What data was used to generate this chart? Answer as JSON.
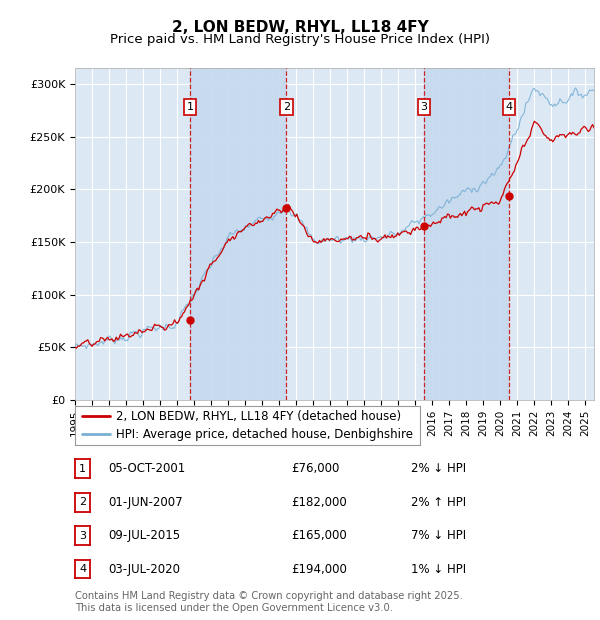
{
  "title": "2, LON BEDW, RHYL, LL18 4FY",
  "subtitle": "Price paid vs. HM Land Registry's House Price Index (HPI)",
  "ylabel_ticks": [
    "£0",
    "£50K",
    "£100K",
    "£150K",
    "£200K",
    "£250K",
    "£300K"
  ],
  "ytick_values": [
    0,
    50000,
    100000,
    150000,
    200000,
    250000,
    300000
  ],
  "ylim": [
    0,
    315000
  ],
  "xlim_start": 1995.0,
  "xlim_end": 2025.5,
  "sale_dates": [
    2001.75,
    2007.42,
    2015.52,
    2020.5
  ],
  "sale_prices": [
    76000,
    182000,
    165000,
    194000
  ],
  "sale_labels": [
    "1",
    "2",
    "3",
    "4"
  ],
  "background_color": "#ffffff",
  "chart_bg_color": "#dce9f5",
  "shade_color": "#c5d9ee",
  "grid_color": "#ffffff",
  "hpi_line_color": "#7ab0d4",
  "price_line_color": "#cc0000",
  "vline_color": "#cc0000",
  "legend_entries": [
    "2, LON BEDW, RHYL, LL18 4FY (detached house)",
    "HPI: Average price, detached house, Denbighshire"
  ],
  "table_entries": [
    {
      "num": "1",
      "date": "05-OCT-2001",
      "price": "£76,000",
      "hpi": "2% ↓ HPI"
    },
    {
      "num": "2",
      "date": "01-JUN-2007",
      "price": "£182,000",
      "hpi": "2% ↑ HPI"
    },
    {
      "num": "3",
      "date": "09-JUL-2015",
      "price": "£165,000",
      "hpi": "7% ↓ HPI"
    },
    {
      "num": "4",
      "date": "03-JUL-2020",
      "price": "£194,000",
      "hpi": "1% ↓ HPI"
    }
  ],
  "footer_text": "Contains HM Land Registry data © Crown copyright and database right 2025.\nThis data is licensed under the Open Government Licence v3.0.",
  "title_fontsize": 11,
  "subtitle_fontsize": 9.5,
  "tick_fontsize": 8,
  "legend_fontsize": 8.5
}
